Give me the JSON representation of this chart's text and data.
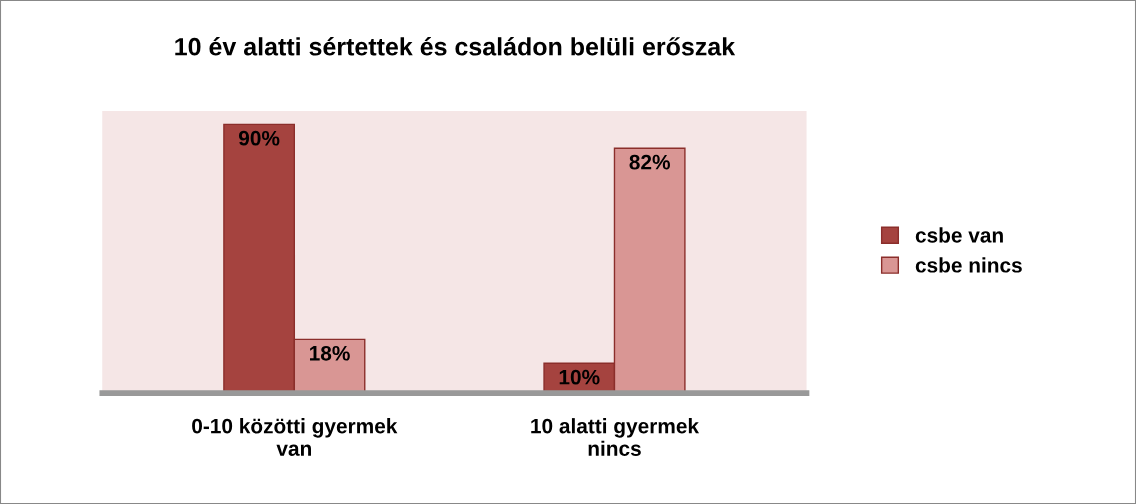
{
  "chart_data": {
    "type": "bar",
    "title": "10 év alatti sértettek és családon belüli erőszak",
    "categories": [
      "0-10 közötti gyermek van",
      "10 alatti gyermek nincs"
    ],
    "series": [
      {
        "name": "csbe van",
        "color": "#a5433f",
        "values": [
          90,
          10
        ],
        "value_labels": [
          "90%",
          "10%"
        ]
      },
      {
        "name": "csbe nincs",
        "color": "#d99694",
        "values": [
          18,
          82
        ],
        "value_labels": [
          "18%",
          "82%"
        ]
      }
    ],
    "legend": "right",
    "grid": false
  }
}
